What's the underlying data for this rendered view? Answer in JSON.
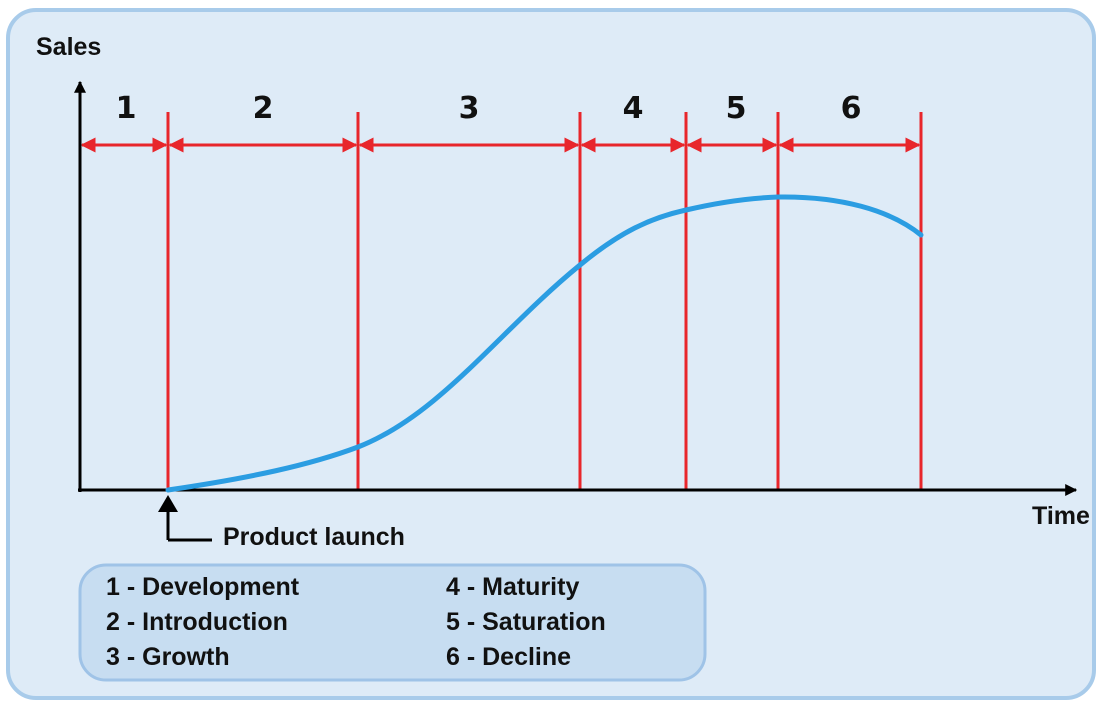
{
  "title_axes": {
    "y_label": "Sales",
    "x_label": "Time"
  },
  "stages": [
    "1",
    "2",
    "3",
    "4",
    "5",
    "6"
  ],
  "annotation": "Product launch",
  "legend": [
    "1 - Development",
    "2 - Introduction",
    "3 - Growth",
    "4 - Maturity",
    "5 - Saturation",
    "6 - Decline"
  ]
}
